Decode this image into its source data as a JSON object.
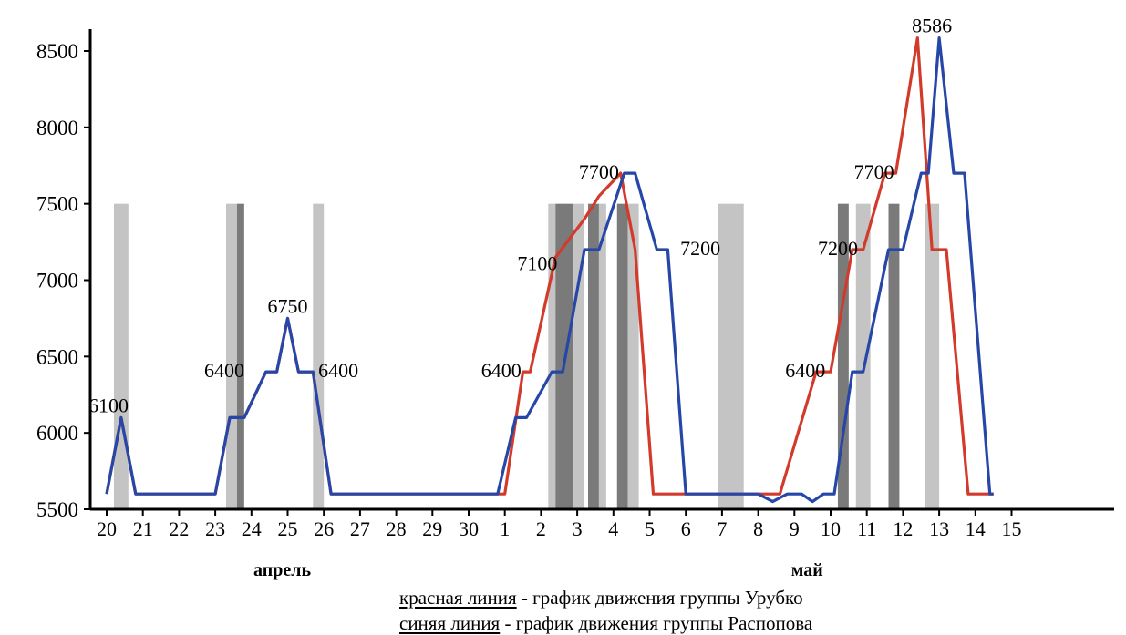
{
  "colors": {
    "red": "#d23b2b",
    "blue": "#2747a8",
    "axis": "#000000",
    "shade_dark": "#7a7a7a",
    "shade_light": "#c4c4c4"
  },
  "chart_data": {
    "type": "line",
    "title": "",
    "xlabel": "",
    "ylabel": "",
    "ylim": [
      5500,
      8700
    ],
    "yticks": [
      5500,
      6000,
      6500,
      7000,
      7500,
      8000,
      8500
    ],
    "x_labels": [
      "20",
      "21",
      "22",
      "23",
      "24",
      "25",
      "26",
      "27",
      "28",
      "29",
      "30",
      "1",
      "2",
      "3",
      "4",
      "5",
      "6",
      "7",
      "8",
      "9",
      "10",
      "11",
      "12",
      "13",
      "14",
      "15"
    ],
    "months": [
      {
        "label": "апрель",
        "at_index": 5
      },
      {
        "label": "май",
        "at_index": 19
      }
    ],
    "series": [
      {
        "color": "red",
        "points": [
          [
            0,
            5600
          ],
          [
            0.4,
            6100
          ],
          [
            0.8,
            5600
          ],
          [
            3,
            5600
          ],
          [
            3.4,
            6100
          ],
          [
            3.8,
            6100
          ],
          [
            4.4,
            6400
          ],
          [
            4.7,
            6400
          ],
          [
            5.0,
            6750
          ],
          [
            5.3,
            6400
          ],
          [
            5.7,
            6400
          ],
          [
            6.2,
            5600
          ],
          [
            11.0,
            5600
          ],
          [
            11.5,
            6400
          ],
          [
            11.7,
            6400
          ],
          [
            12.4,
            7150
          ],
          [
            13.2,
            7400
          ],
          [
            13.6,
            7550
          ],
          [
            14.2,
            7700
          ],
          [
            14.6,
            7200
          ],
          [
            15.1,
            5600
          ],
          [
            17.0,
            5600
          ],
          [
            18.0,
            5600
          ],
          [
            18.6,
            5600
          ],
          [
            19.6,
            6400
          ],
          [
            20.0,
            6400
          ],
          [
            20.6,
            7200
          ],
          [
            20.9,
            7200
          ],
          [
            21.5,
            7700
          ],
          [
            21.8,
            7700
          ],
          [
            22.4,
            8586
          ],
          [
            22.8,
            7200
          ],
          [
            23.2,
            7200
          ],
          [
            23.8,
            5600
          ],
          [
            24.5,
            5600
          ]
        ]
      },
      {
        "color": "blue",
        "points": [
          [
            0,
            5600
          ],
          [
            0.4,
            6100
          ],
          [
            0.8,
            5600
          ],
          [
            3,
            5600
          ],
          [
            3.4,
            6100
          ],
          [
            3.8,
            6100
          ],
          [
            4.4,
            6400
          ],
          [
            4.7,
            6400
          ],
          [
            5.0,
            6750
          ],
          [
            5.3,
            6400
          ],
          [
            5.7,
            6400
          ],
          [
            6.2,
            5600
          ],
          [
            10.5,
            5600
          ],
          [
            10.8,
            5600
          ],
          [
            11.3,
            6100
          ],
          [
            11.6,
            6100
          ],
          [
            12.3,
            6400
          ],
          [
            12.6,
            6400
          ],
          [
            13.2,
            7200
          ],
          [
            13.6,
            7200
          ],
          [
            14.3,
            7700
          ],
          [
            14.6,
            7700
          ],
          [
            15.2,
            7200
          ],
          [
            15.5,
            7200
          ],
          [
            16.0,
            5600
          ],
          [
            18.0,
            5600
          ],
          [
            18.4,
            5550
          ],
          [
            18.8,
            5600
          ],
          [
            19.2,
            5600
          ],
          [
            19.5,
            5550
          ],
          [
            19.8,
            5600
          ],
          [
            20.1,
            5600
          ],
          [
            20.6,
            6400
          ],
          [
            20.9,
            6400
          ],
          [
            21.6,
            7200
          ],
          [
            22.0,
            7200
          ],
          [
            22.5,
            7700
          ],
          [
            22.7,
            7700
          ],
          [
            23.0,
            8586
          ],
          [
            23.4,
            7700
          ],
          [
            23.7,
            7700
          ],
          [
            24.4,
            5600
          ],
          [
            24.5,
            5600
          ]
        ]
      }
    ],
    "shaded_bars": [
      {
        "x": 0.2,
        "w": 0.4,
        "tone": "light"
      },
      {
        "x": 3.3,
        "w": 0.3,
        "tone": "light"
      },
      {
        "x": 3.6,
        "w": 0.2,
        "tone": "dark"
      },
      {
        "x": 5.7,
        "w": 0.3,
        "tone": "light"
      },
      {
        "x": 12.2,
        "w": 0.2,
        "tone": "light"
      },
      {
        "x": 12.4,
        "w": 0.5,
        "tone": "dark"
      },
      {
        "x": 12.9,
        "w": 0.3,
        "tone": "light"
      },
      {
        "x": 13.3,
        "w": 0.3,
        "tone": "dark"
      },
      {
        "x": 13.6,
        "w": 0.2,
        "tone": "light"
      },
      {
        "x": 14.1,
        "w": 0.3,
        "tone": "dark"
      },
      {
        "x": 14.4,
        "w": 0.3,
        "tone": "light"
      },
      {
        "x": 20.2,
        "w": 0.3,
        "tone": "dark"
      },
      {
        "x": 20.7,
        "w": 0.4,
        "tone": "light"
      },
      {
        "x": 21.6,
        "w": 0.3,
        "tone": "dark"
      },
      {
        "x": 22.6,
        "w": 0.4,
        "tone": "light"
      },
      {
        "x": 16.9,
        "w": 0.7,
        "tone": "light"
      }
    ],
    "annotations": [
      {
        "text": "6100",
        "x": 0.15,
        "y": 6100,
        "dx": -4,
        "dy": -12
      },
      {
        "text": "6400",
        "x": 3.5,
        "y": 6400,
        "dx": -10,
        "dy": 0
      },
      {
        "text": "6750",
        "x": 5.0,
        "y": 6750,
        "dx": 0,
        "dy": -12
      },
      {
        "text": "6400",
        "x": 6.4,
        "y": 6400,
        "dx": 0,
        "dy": 0
      },
      {
        "text": "6400",
        "x": 10.9,
        "y": 6400,
        "dx": 0,
        "dy": 0
      },
      {
        "text": "7100",
        "x": 11.9,
        "y": 7100,
        "dx": 0,
        "dy": 0
      },
      {
        "text": "7700",
        "x": 13.6,
        "y": 7700,
        "dx": 0,
        "dy": 0
      },
      {
        "text": "7200",
        "x": 16.4,
        "y": 7200,
        "dx": 0,
        "dy": 0
      },
      {
        "text": "6400",
        "x": 19.3,
        "y": 6400,
        "dx": 0,
        "dy": 0
      },
      {
        "text": "7200",
        "x": 20.2,
        "y": 7200,
        "dx": 0,
        "dy": 0
      },
      {
        "text": "7700",
        "x": 21.2,
        "y": 7700,
        "dx": 0,
        "dy": 0
      },
      {
        "text": "8586",
        "x": 22.8,
        "y": 8586,
        "dx": 0,
        "dy": -12
      }
    ]
  },
  "legend": {
    "red_key": "красная линия",
    "red_text": " - график движения группы Урубко",
    "blue_key": "синяя линия",
    "blue_text": " - график движения группы Распопова"
  }
}
